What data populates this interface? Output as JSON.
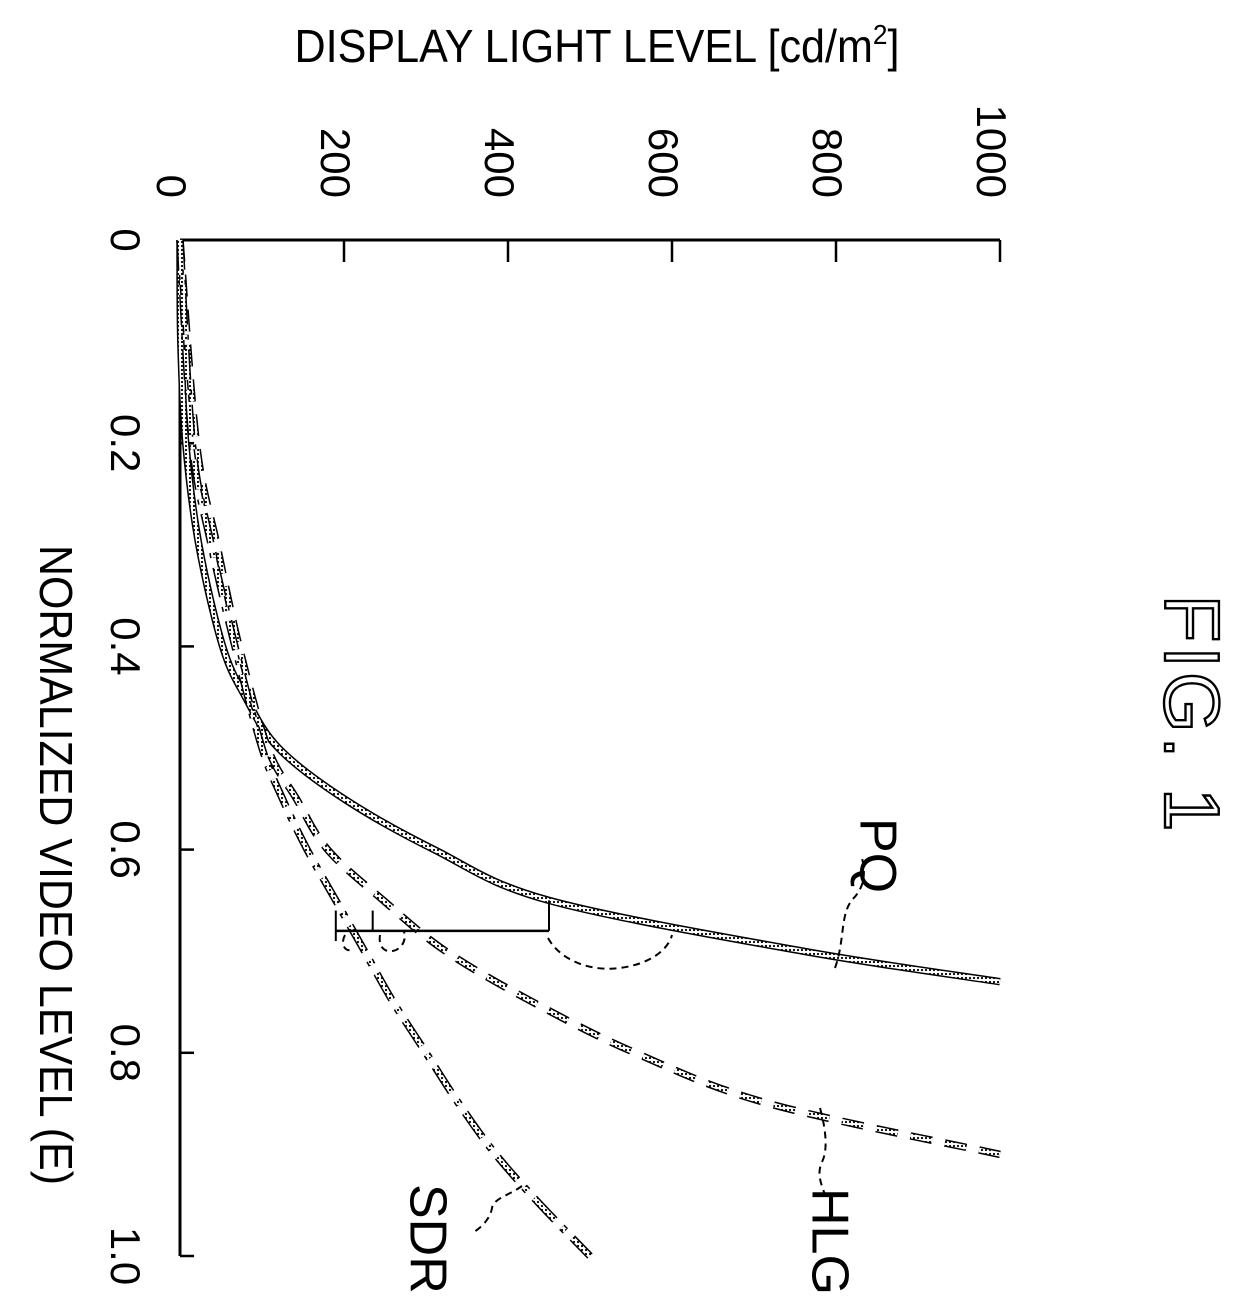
{
  "figure": {
    "title": "FIG. 1"
  },
  "chart_data": {
    "type": "line",
    "xlabel": "NORMALIZED VIDEO LEVEL (E)",
    "ylabel": "DISPLAY LIGHT LEVEL [cd/m2]",
    "ylabel_main": "DISPLAY LIGHT LEVEL [cd/m",
    "ylabel_sup": "2",
    "ylabel_end": "]",
    "xlim": [
      0,
      1.0
    ],
    "ylim": [
      0,
      1000
    ],
    "x_ticks": [
      0,
      0.2,
      0.4,
      0.6,
      0.8,
      1.0
    ],
    "x_tick_labels": [
      "0",
      "0.2",
      "0.4",
      "0.6",
      "0.8",
      "1.0"
    ],
    "y_ticks": [
      0,
      200,
      400,
      600,
      800,
      1000
    ],
    "y_tick_labels": [
      "0",
      "200",
      "400",
      "600",
      "800",
      "1000"
    ],
    "grid": false,
    "series": [
      {
        "name": "PQ",
        "style": "solid",
        "x": [
          0,
          0.1,
          0.2,
          0.3,
          0.4,
          0.45,
          0.5,
          0.55,
          0.6,
          0.65,
          0.7,
          0.73
        ],
        "y": [
          0,
          1,
          7,
          23,
          52,
          80,
          120,
          200,
          310,
          450,
          760,
          1000
        ]
      },
      {
        "name": "HLG",
        "style": "dashed",
        "x": [
          0,
          0.2,
          0.3,
          0.4,
          0.5,
          0.55,
          0.6,
          0.65,
          0.7,
          0.75,
          0.8,
          0.85,
          0.9
        ],
        "y": [
          0,
          20,
          45,
          72,
          107,
          142,
          180,
          248,
          324,
          430,
          555,
          718,
          1000
        ]
      },
      {
        "name": "SDR",
        "style": "dash-dot",
        "x": [
          0,
          0.2,
          0.3,
          0.4,
          0.5,
          0.55,
          0.6,
          0.65,
          0.7,
          0.75,
          0.8,
          0.85,
          0.9,
          0.95,
          1.0
        ],
        "y": [
          0,
          15,
          38,
          67,
          100,
          125,
          155,
          190,
          225,
          260,
          300,
          340,
          385,
          440,
          500
        ]
      }
    ],
    "annotations": [
      {
        "type": "bracket",
        "x": 0.68,
        "y": [
          190,
          450
        ]
      },
      {
        "type": "tick",
        "x": [
          0.65,
          0.68
        ],
        "y": 450
      },
      {
        "type": "tick",
        "x": [
          0.66,
          0.68
        ],
        "y": 235
      },
      {
        "type": "tick",
        "x": [
          0.66,
          0.68
        ],
        "y": 190
      }
    ]
  }
}
